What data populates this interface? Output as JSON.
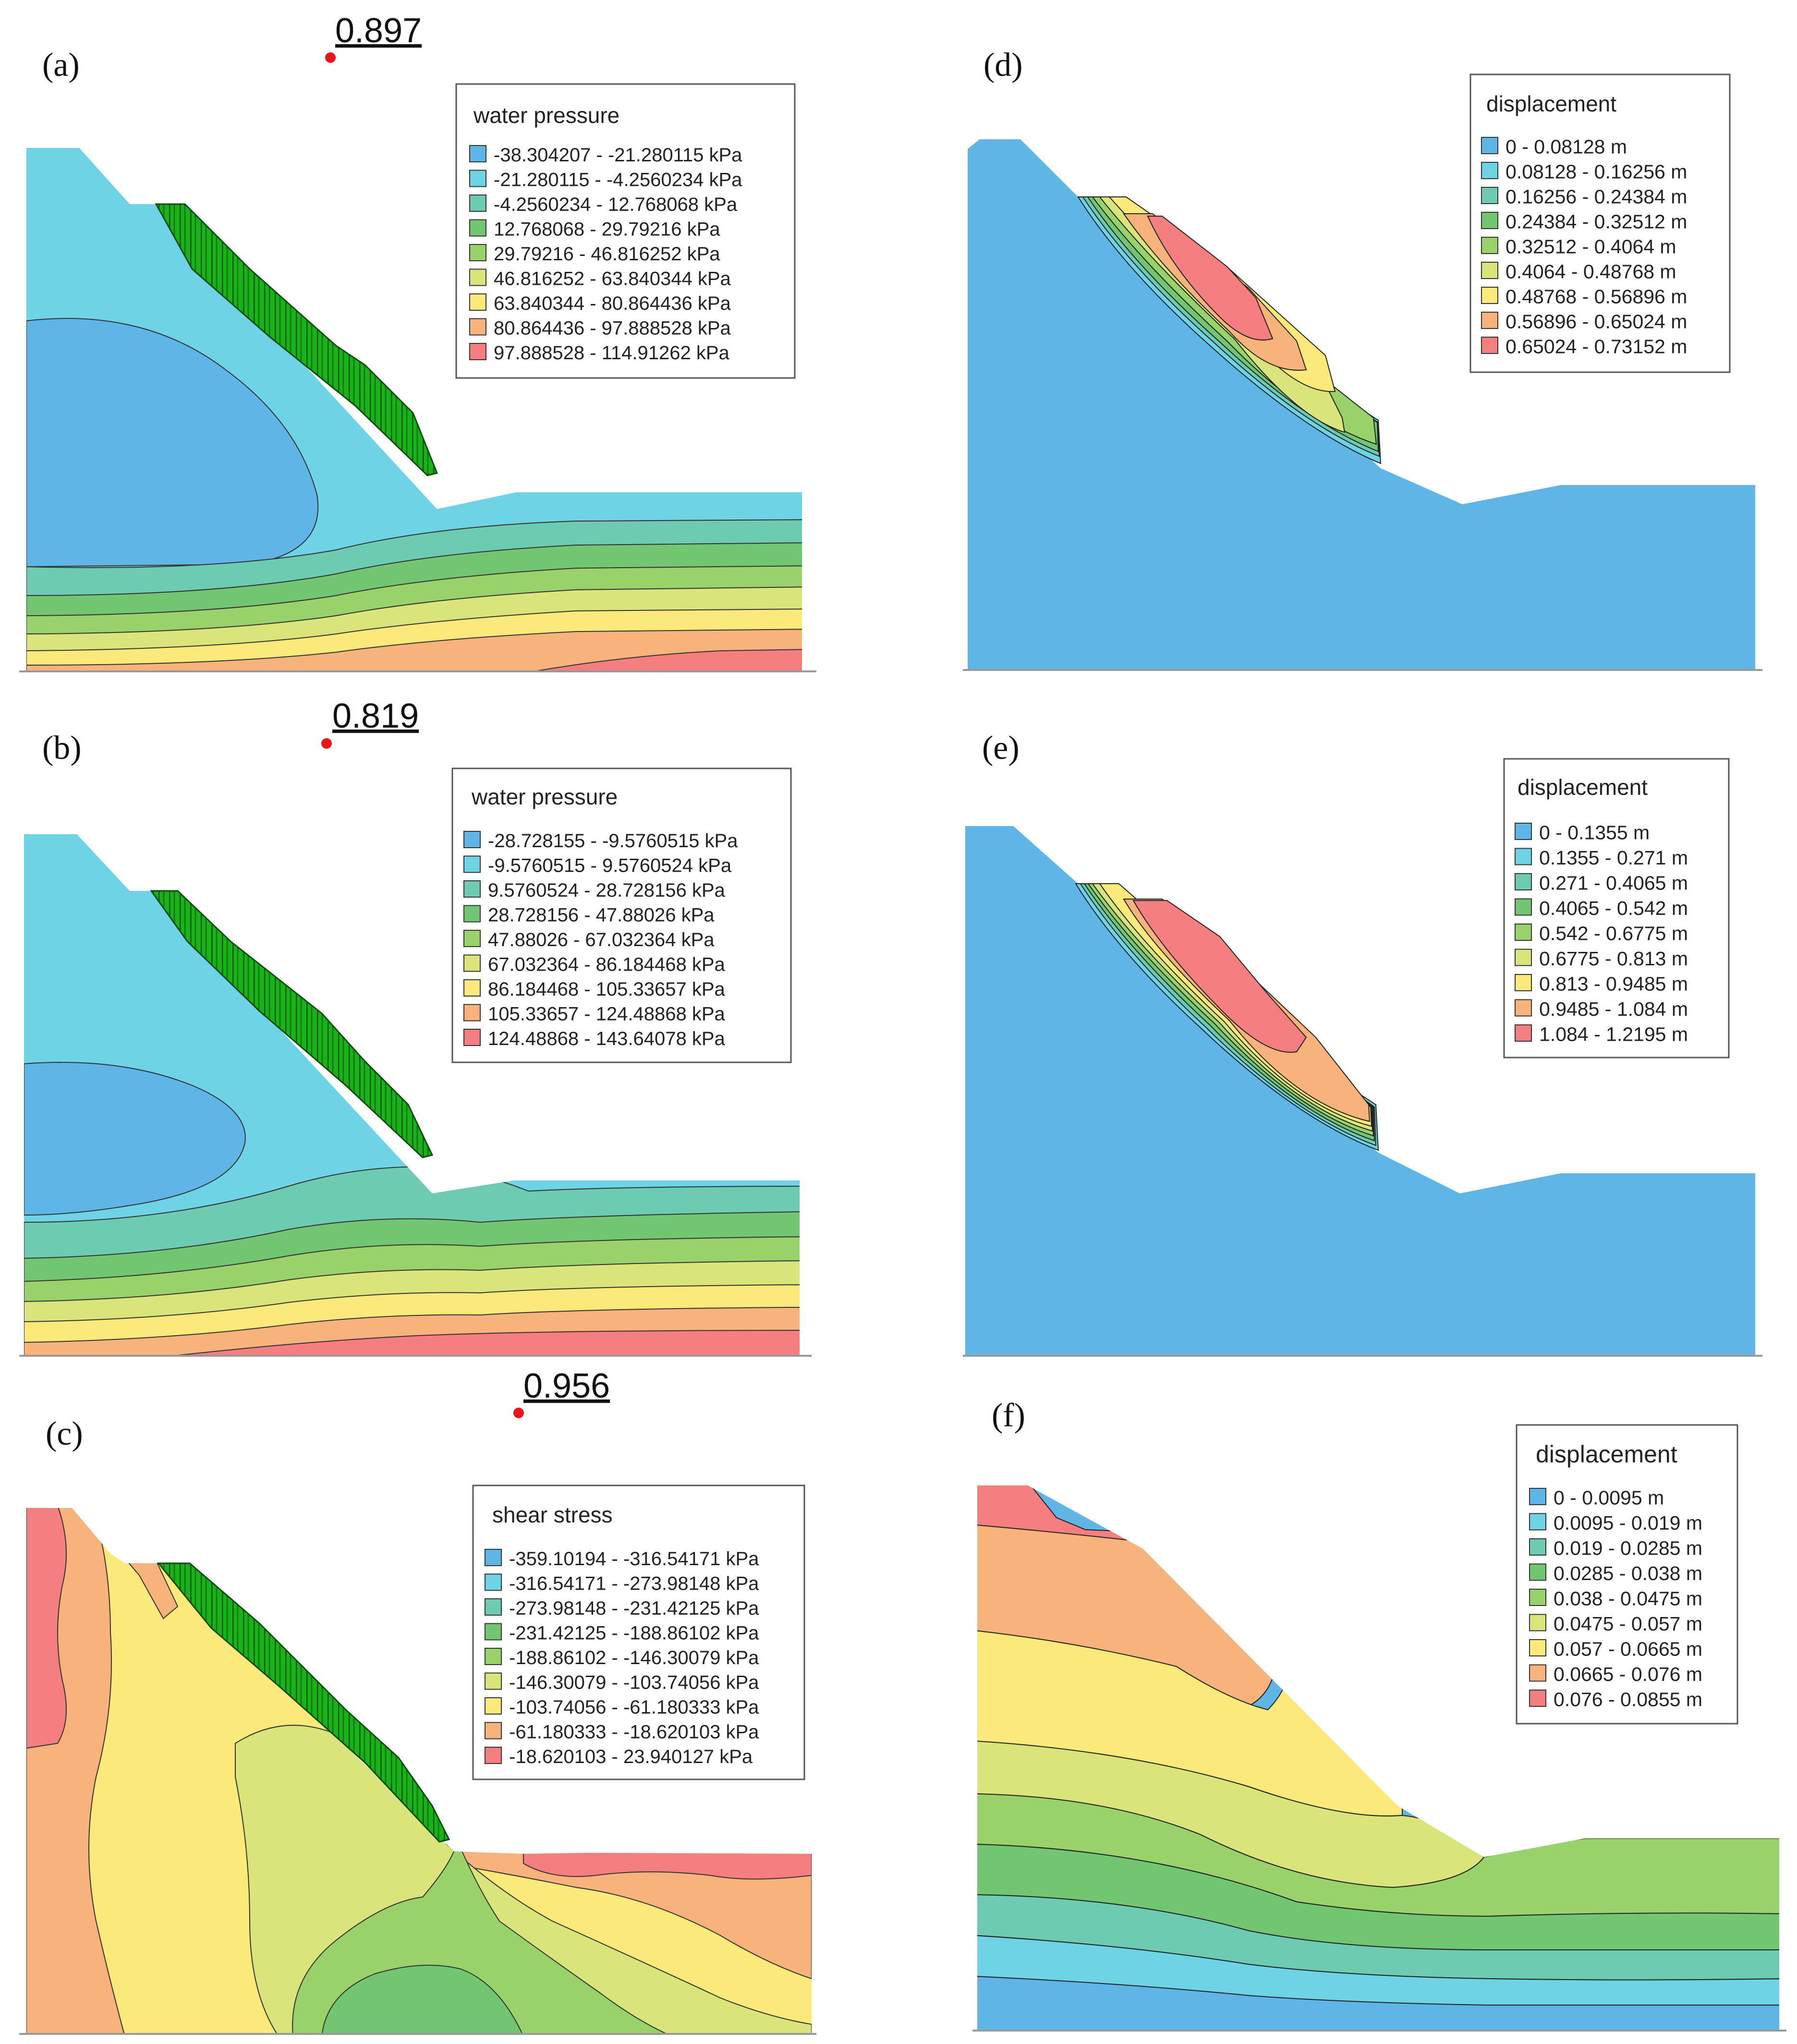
{
  "panels": [
    {
      "id": "a",
      "label": "(a)",
      "marker_value": "0.897",
      "legend": {
        "title": "water pressure",
        "entries": [
          {
            "text": "-38.304207 - -21.280115 kPa",
            "color": "#5eb5e6"
          },
          {
            "text": "-21.280115 - -4.2560234 kPa",
            "color": "#6fd3e6"
          },
          {
            "text": "-4.2560234 - 12.768068 kPa",
            "color": "#6ccbb0"
          },
          {
            "text": "12.768068 - 29.79216 kPa",
            "color": "#72c672"
          },
          {
            "text": "29.79216 - 46.816252 kPa",
            "color": "#99d16a"
          },
          {
            "text": "46.816252 - 63.840344 kPa",
            "color": "#d9e47a"
          },
          {
            "text": "63.840344 - 80.864436 kPa",
            "color": "#fbea7a"
          },
          {
            "text": "80.864436 - 97.888528 kPa",
            "color": "#f8b27c"
          },
          {
            "text": "97.888528 - 114.91262 kPa",
            "color": "#f47e80"
          }
        ]
      }
    },
    {
      "id": "b",
      "label": "(b)",
      "marker_value": "0.819",
      "legend": {
        "title": "water pressure",
        "entries": [
          {
            "text": "-28.728155 - -9.5760515 kPa",
            "color": "#5eb5e6"
          },
          {
            "text": "-9.5760515 - 9.5760524 kPa",
            "color": "#6fd3e6"
          },
          {
            "text": "9.5760524 - 28.728156 kPa",
            "color": "#6ccbb0"
          },
          {
            "text": "28.728156 - 47.88026 kPa",
            "color": "#72c672"
          },
          {
            "text": "47.88026 - 67.032364 kPa",
            "color": "#99d16a"
          },
          {
            "text": "67.032364 - 86.184468 kPa",
            "color": "#d9e47a"
          },
          {
            "text": "86.184468 - 105.33657 kPa",
            "color": "#fbea7a"
          },
          {
            "text": "105.33657 - 124.48868 kPa",
            "color": "#f8b27c"
          },
          {
            "text": "124.48868 - 143.64078 kPa",
            "color": "#f47e80"
          }
        ]
      }
    },
    {
      "id": "c",
      "label": "(c)",
      "marker_value": "0.956",
      "legend": {
        "title": "shear stress",
        "entries": [
          {
            "text": "-359.10194 - -316.54171 kPa",
            "color": "#5eb5e6"
          },
          {
            "text": "-316.54171 - -273.98148 kPa",
            "color": "#6fd3e6"
          },
          {
            "text": "-273.98148 - -231.42125 kPa",
            "color": "#6ccbb0"
          },
          {
            "text": "-231.42125 - -188.86102 kPa",
            "color": "#72c672"
          },
          {
            "text": "-188.86102 - -146.30079 kPa",
            "color": "#99d16a"
          },
          {
            "text": "-146.30079 - -103.74056 kPa",
            "color": "#d9e47a"
          },
          {
            "text": "-103.74056 - -61.180333 kPa",
            "color": "#fbea7a"
          },
          {
            "text": "-61.180333 - -18.620103 kPa",
            "color": "#f8b27c"
          },
          {
            "text": "-18.620103 - 23.940127 kPa",
            "color": "#f47e80"
          }
        ]
      }
    },
    {
      "id": "d",
      "label": "(d)",
      "legend": {
        "title": "displacement",
        "entries": [
          {
            "text": "0 - 0.08128 m",
            "color": "#5eb5e6"
          },
          {
            "text": "0.08128 - 0.16256 m",
            "color": "#6fd3e6"
          },
          {
            "text": "0.16256 - 0.24384 m",
            "color": "#6ccbb0"
          },
          {
            "text": "0.24384 - 0.32512 m",
            "color": "#72c672"
          },
          {
            "text": "0.32512 - 0.4064 m",
            "color": "#99d16a"
          },
          {
            "text": "0.4064 - 0.48768 m",
            "color": "#d9e47a"
          },
          {
            "text": "0.48768 - 0.56896 m",
            "color": "#fbea7a"
          },
          {
            "text": "0.56896 - 0.65024 m",
            "color": "#f8b27c"
          },
          {
            "text": "0.65024 - 0.73152 m",
            "color": "#f47e80"
          }
        ]
      }
    },
    {
      "id": "e",
      "label": "(e)",
      "legend": {
        "title": "displacement",
        "entries": [
          {
            "text": "0 - 0.1355 m",
            "color": "#5eb5e6"
          },
          {
            "text": "0.1355 - 0.271 m",
            "color": "#6fd3e6"
          },
          {
            "text": "0.271 - 0.4065 m",
            "color": "#6ccbb0"
          },
          {
            "text": "0.4065 - 0.542 m",
            "color": "#72c672"
          },
          {
            "text": "0.542 - 0.6775 m",
            "color": "#99d16a"
          },
          {
            "text": "0.6775 - 0.813 m",
            "color": "#d9e47a"
          },
          {
            "text": "0.813 - 0.9485 m",
            "color": "#fbea7a"
          },
          {
            "text": "0.9485 - 1.084 m",
            "color": "#f8b27c"
          },
          {
            "text": "1.084 - 1.2195 m",
            "color": "#f47e80"
          }
        ]
      }
    },
    {
      "id": "f",
      "label": "(f)",
      "legend": {
        "title": "displacement",
        "entries": [
          {
            "text": "0 - 0.0095 m",
            "color": "#5eb5e6"
          },
          {
            "text": "0.0095 - 0.019 m",
            "color": "#6fd3e6"
          },
          {
            "text": "0.019 - 0.0285 m",
            "color": "#6ccbb0"
          },
          {
            "text": "0.0285 - 0.038 m",
            "color": "#72c672"
          },
          {
            "text": "0.038 - 0.0475 m",
            "color": "#99d16a"
          },
          {
            "text": "0.0475 - 0.057 m",
            "color": "#d9e47a"
          },
          {
            "text": "0.057 - 0.0665 m",
            "color": "#fbea7a"
          },
          {
            "text": "0.0665 - 0.076 m",
            "color": "#f8b27c"
          },
          {
            "text": "0.076 - 0.0855 m",
            "color": "#f47e80"
          }
        ]
      }
    }
  ],
  "colors": {
    "c1": "#5eb5e6",
    "c2": "#6fd3e6",
    "c3": "#6ccbb0",
    "c4": "#72c672",
    "c5": "#99d16a",
    "c6": "#d9e47a",
    "c7": "#fbea7a",
    "c8": "#f8b27c",
    "c9": "#f47e80",
    "landslide_green": "#19b319",
    "marker_red": "#e8151b"
  }
}
